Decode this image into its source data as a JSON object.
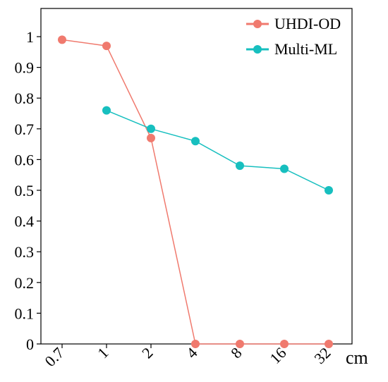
{
  "chart_data": {
    "type": "line",
    "categories": [
      "0.7",
      "1",
      "2",
      "4",
      "8",
      "16",
      "32"
    ],
    "x_unit": "cm",
    "series": [
      {
        "name": "UHDI-OD",
        "color": "#f07a6e",
        "values": [
          0.99,
          0.97,
          0.67,
          0,
          0,
          0,
          0
        ]
      },
      {
        "name": "Multi-ML",
        "color": "#17bfbf",
        "values": [
          null,
          0.76,
          0.7,
          0.66,
          0.58,
          0.57,
          0.5
        ]
      }
    ],
    "y_ticks": [
      "0",
      "0.1",
      "0.2",
      "0.3",
      "0.4",
      "0.5",
      "0.6",
      "0.7",
      "0.8",
      "0.9",
      "1"
    ],
    "ylim": [
      0,
      1.1
    ],
    "grid": false,
    "legend_position": "top-right"
  }
}
